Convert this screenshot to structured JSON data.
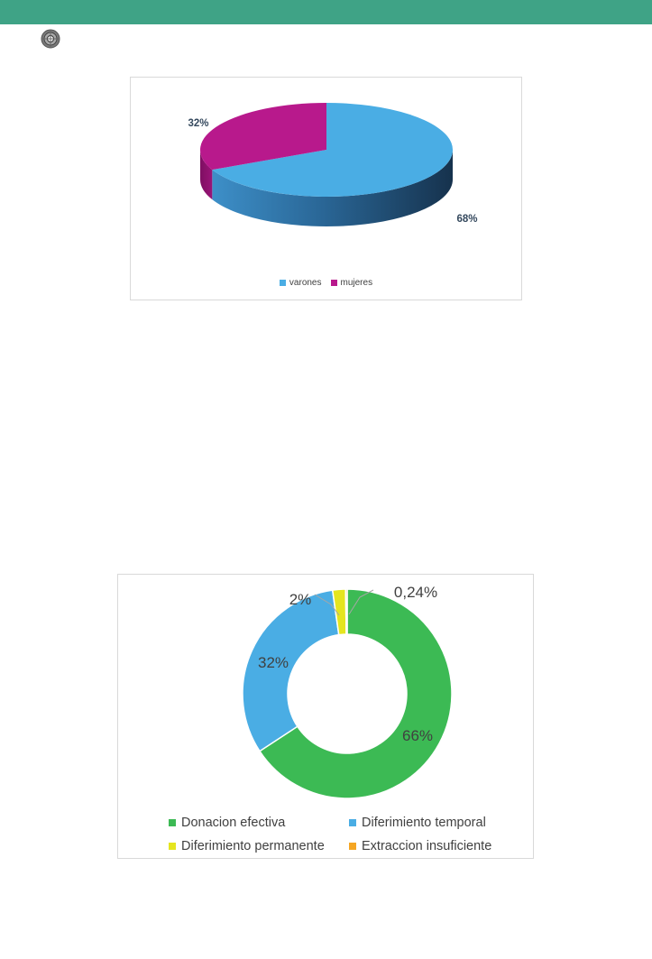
{
  "header": {
    "band_color": "#3fa386"
  },
  "logo": {
    "icon": "gear-seal-icon"
  },
  "chart_data": [
    {
      "type": "pie",
      "style": "3d",
      "categories": [
        "varones",
        "mujeres"
      ],
      "values": [
        68,
        32
      ],
      "labels": [
        "68%",
        "32%"
      ],
      "colors": [
        "#4aade4",
        "#b8198c"
      ],
      "legend": [
        "varones",
        "mujeres"
      ],
      "legend_position": "bottom"
    },
    {
      "type": "pie",
      "style": "doughnut",
      "categories": [
        "Donacion efectiva",
        "Diferimiento temporal",
        "Diferimiento permanente",
        "Extraccion insuficiente"
      ],
      "values": [
        65.76,
        32.0,
        2.0,
        0.24
      ],
      "labels": [
        "66%",
        "32%",
        "2%",
        "0,24%"
      ],
      "colors": [
        "#3cba54",
        "#4aade4",
        "#e5e51f",
        "#f5a623"
      ],
      "legend": [
        "Donacion efectiva",
        "Diferimiento temporal",
        "Diferimiento permanente",
        "Extraccion insuficiente"
      ],
      "legend_position": "bottom"
    }
  ]
}
